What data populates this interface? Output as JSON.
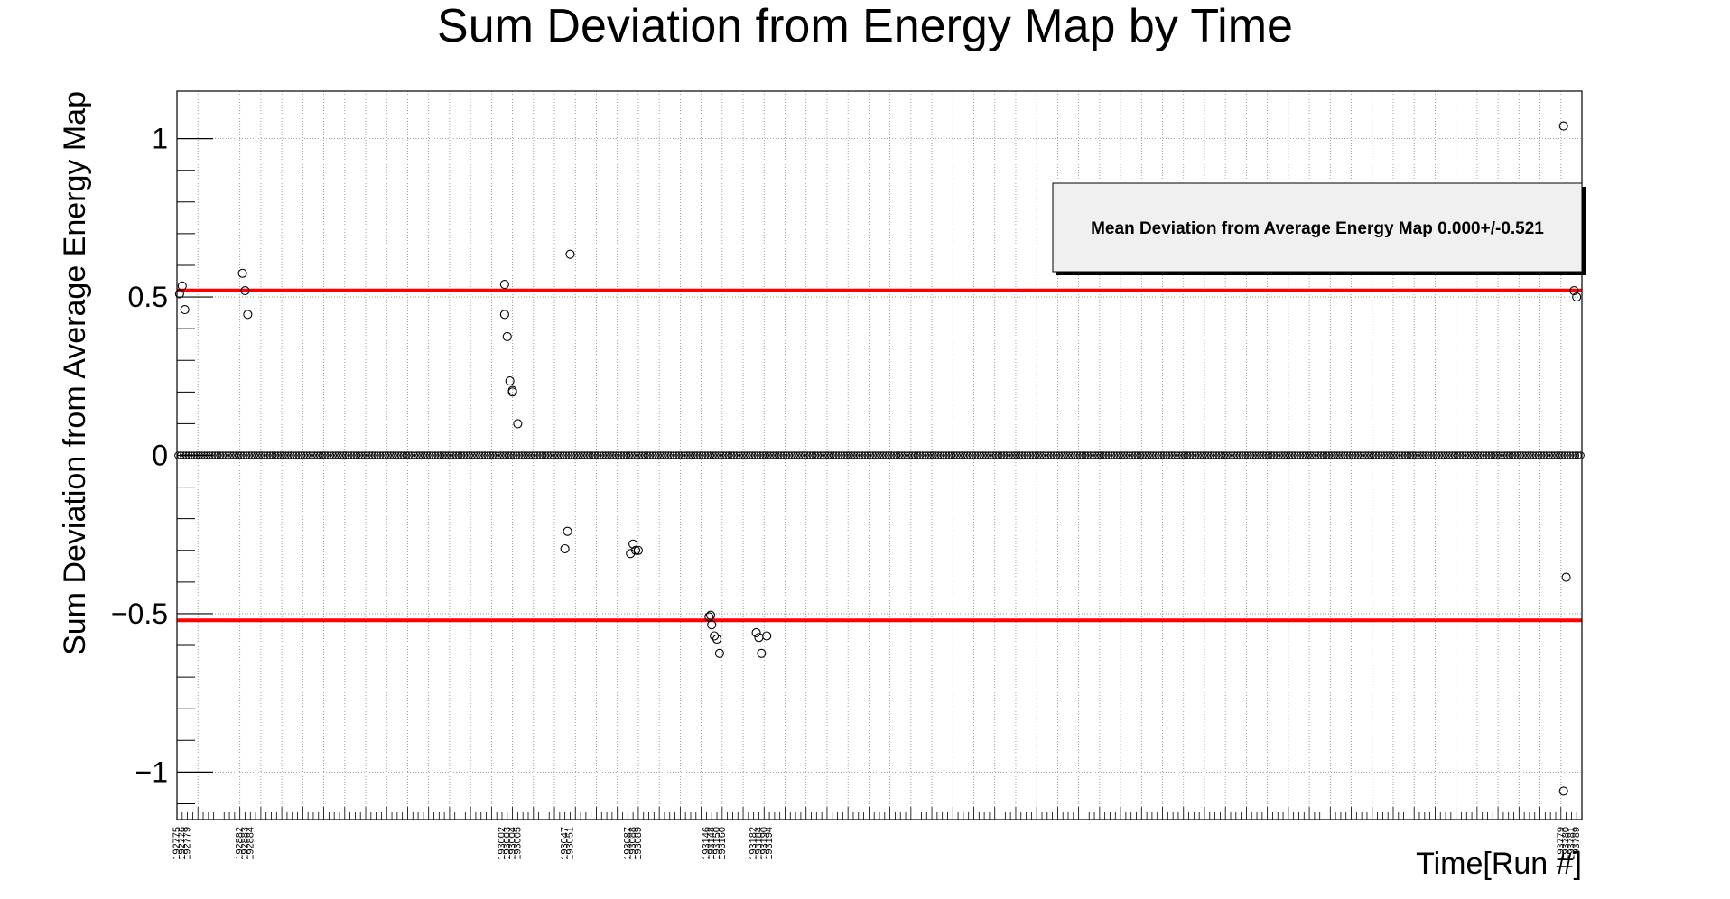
{
  "chart_data": {
    "type": "scatter",
    "title": "Sum Deviation from Energy Map by Time",
    "xlabel": "Time[Run #]",
    "ylabel": "Sum Deviation from Average Energy Map",
    "ylim": [
      -1.15,
      1.15
    ],
    "yticks": [
      -1,
      -0.5,
      0,
      0.5,
      1
    ],
    "ytick_labels": [
      "−1",
      "−0.5",
      "0",
      "0.5",
      "1"
    ],
    "xlim": [
      0,
      268
    ],
    "grid": true,
    "legend": {
      "text": "Mean Deviation from Average Energy Map 0.000+/-0.521",
      "placement": "top-right"
    },
    "reference_lines": {
      "color": "#ff0000",
      "values": [
        0.521,
        -0.521
      ]
    },
    "marker_color": "#000000",
    "xtick_labels": [
      {
        "x": 0,
        "label": "192775"
      },
      {
        "x": 1,
        "label": "192776"
      },
      {
        "x": 2,
        "label": "192779"
      },
      {
        "x": 12,
        "label": "192882"
      },
      {
        "x": 13,
        "label": "192883"
      },
      {
        "x": 14,
        "label": "192884"
      },
      {
        "x": 62,
        "label": "193002"
      },
      {
        "x": 63,
        "label": "193003"
      },
      {
        "x": 64,
        "label": "193004"
      },
      {
        "x": 65,
        "label": "193005"
      },
      {
        "x": 74,
        "label": "193047"
      },
      {
        "x": 75,
        "label": "193051"
      },
      {
        "x": 86,
        "label": "193087"
      },
      {
        "x": 87,
        "label": "193088"
      },
      {
        "x": 88,
        "label": "193089"
      },
      {
        "x": 101,
        "label": "193146"
      },
      {
        "x": 102,
        "label": "193148"
      },
      {
        "x": 103,
        "label": "193150"
      },
      {
        "x": 104,
        "label": "193160"
      },
      {
        "x": 110,
        "label": "193182"
      },
      {
        "x": 111,
        "label": "193184"
      },
      {
        "x": 112,
        "label": "193190"
      },
      {
        "x": 113,
        "label": "193194"
      },
      {
        "x": 264,
        "label": "193779"
      },
      {
        "x": 265,
        "label": "193780"
      },
      {
        "x": 266,
        "label": "193781"
      },
      {
        "x": 267,
        "label": "193789"
      }
    ],
    "zero_points_x_range": [
      0,
      268
    ],
    "points": [
      {
        "x": 0.5,
        "y": 0.51
      },
      {
        "x": 1.0,
        "y": 0.535
      },
      {
        "x": 1.5,
        "y": 0.46
      },
      {
        "x": 12.5,
        "y": 0.575
      },
      {
        "x": 13.0,
        "y": 0.52
      },
      {
        "x": 13.5,
        "y": 0.445
      },
      {
        "x": 62.5,
        "y": 0.54
      },
      {
        "x": 62.5,
        "y": 0.445
      },
      {
        "x": 63.0,
        "y": 0.375
      },
      {
        "x": 63.5,
        "y": 0.235
      },
      {
        "x": 64.0,
        "y": 0.205
      },
      {
        "x": 64.0,
        "y": 0.2
      },
      {
        "x": 65.0,
        "y": 0.1
      },
      {
        "x": 74.0,
        "y": -0.295
      },
      {
        "x": 74.5,
        "y": -0.24
      },
      {
        "x": 75.0,
        "y": 0.635
      },
      {
        "x": 86.5,
        "y": -0.31
      },
      {
        "x": 87.0,
        "y": -0.28
      },
      {
        "x": 87.5,
        "y": -0.3
      },
      {
        "x": 88.0,
        "y": -0.3
      },
      {
        "x": 101.5,
        "y": -0.51
      },
      {
        "x": 101.8,
        "y": -0.505
      },
      {
        "x": 102.0,
        "y": -0.535
      },
      {
        "x": 102.5,
        "y": -0.57
      },
      {
        "x": 103.0,
        "y": -0.58
      },
      {
        "x": 103.5,
        "y": -0.625
      },
      {
        "x": 110.5,
        "y": -0.56
      },
      {
        "x": 111.0,
        "y": -0.575
      },
      {
        "x": 111.5,
        "y": -0.625
      },
      {
        "x": 112.5,
        "y": -0.57
      },
      {
        "x": 264.5,
        "y": 1.04
      },
      {
        "x": 264.5,
        "y": -1.06
      },
      {
        "x": 265.0,
        "y": -0.385
      },
      {
        "x": 266.5,
        "y": 0.52
      },
      {
        "x": 267.0,
        "y": 0.5
      }
    ]
  }
}
